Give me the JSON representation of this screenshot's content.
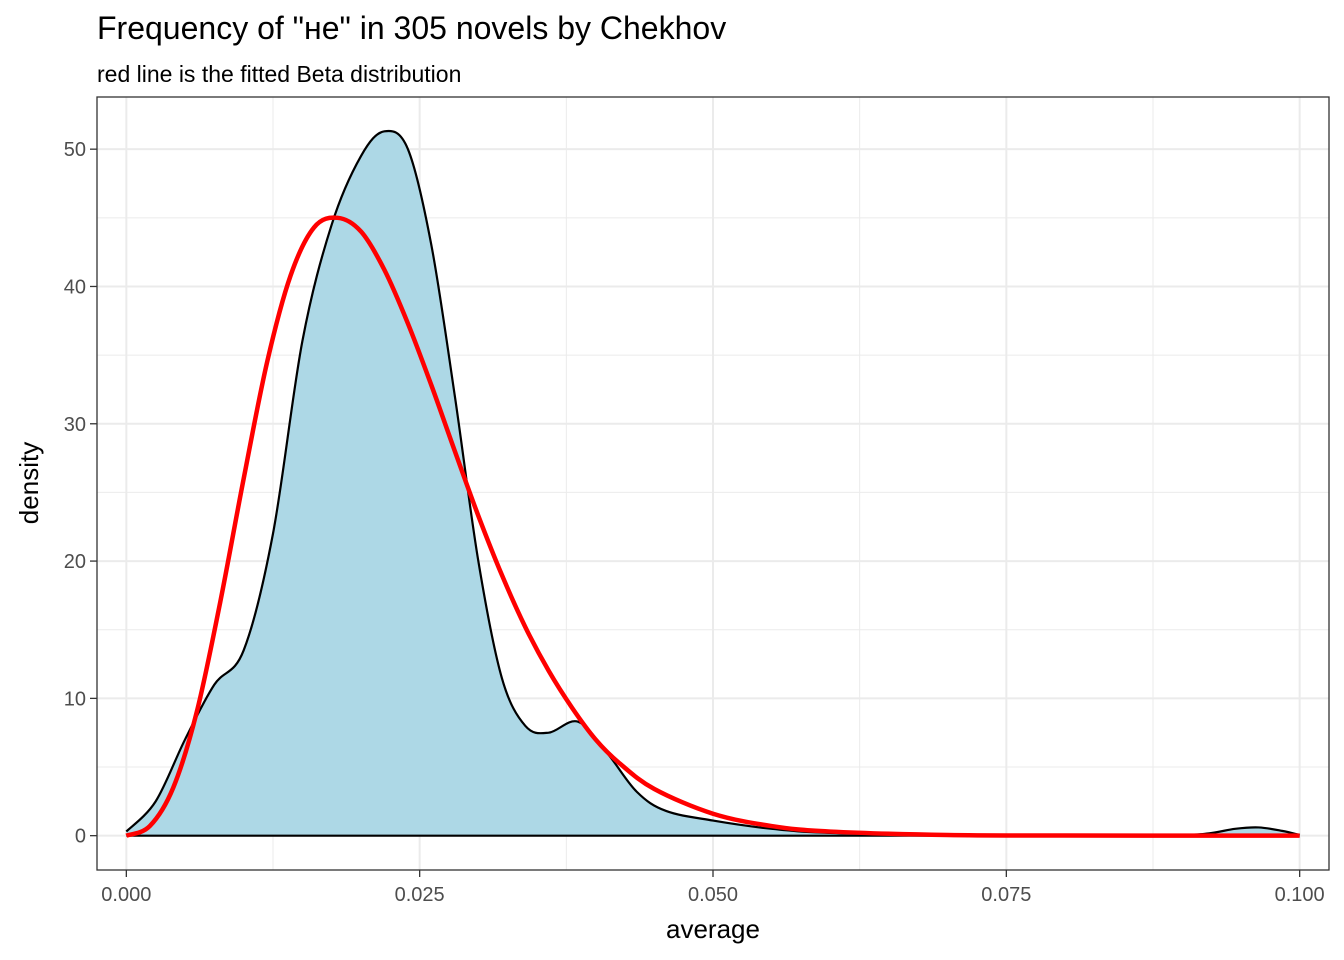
{
  "chart_data": {
    "type": "area",
    "title": "Frequency of \"не\" in 305 novels by Chekhov",
    "subtitle": "red line is the fitted Beta distribution",
    "xlabel": "average",
    "ylabel": "density",
    "xlim": [
      -0.0025,
      0.1025
    ],
    "ylim": [
      -2.5,
      53.8
    ],
    "x_ticks": [
      0.0,
      0.025,
      0.05,
      0.075,
      0.1
    ],
    "x_tick_labels": [
      "0.000",
      "0.025",
      "0.050",
      "0.075",
      "0.100"
    ],
    "y_ticks": [
      0,
      10,
      20,
      30,
      40,
      50
    ],
    "y_tick_labels": [
      "0",
      "10",
      "20",
      "30",
      "40",
      "50"
    ],
    "grid": true,
    "legend": "none",
    "colors": {
      "fill": "#add8e6",
      "outline": "#000000",
      "fit_line": "#ff0000",
      "grid": "#ebebeb"
    },
    "series": [
      {
        "kind": "density-area",
        "x": [
          0.0,
          0.0025,
          0.005,
          0.0075,
          0.01,
          0.0125,
          0.015,
          0.0175,
          0.02,
          0.022,
          0.024,
          0.026,
          0.028,
          0.03,
          0.032,
          0.034,
          0.036,
          0.0385,
          0.041,
          0.0435,
          0.046,
          0.05,
          0.055,
          0.06,
          0.07,
          0.08,
          0.09,
          0.0925,
          0.0945,
          0.0965,
          0.0985,
          0.1
        ],
        "y": [
          0.3,
          2.5,
          7.0,
          11.0,
          13.5,
          22.0,
          36.0,
          44.5,
          49.5,
          51.3,
          50.0,
          43.0,
          32.0,
          20.0,
          11.5,
          8.0,
          7.5,
          8.3,
          6.0,
          3.2,
          1.8,
          1.1,
          0.5,
          0.2,
          0.05,
          0.02,
          0.05,
          0.2,
          0.5,
          0.6,
          0.35,
          0.05
        ]
      },
      {
        "kind": "fitted-line",
        "x": [
          0.0,
          0.002,
          0.004,
          0.006,
          0.008,
          0.01,
          0.012,
          0.014,
          0.016,
          0.018,
          0.02,
          0.022,
          0.024,
          0.026,
          0.028,
          0.03,
          0.032,
          0.034,
          0.036,
          0.038,
          0.04,
          0.042,
          0.045,
          0.05,
          0.055,
          0.06,
          0.07,
          0.08,
          0.09,
          0.1
        ],
        "y": [
          0.0,
          0.7,
          3.5,
          9.0,
          17.0,
          26.0,
          34.5,
          40.8,
          44.3,
          45.0,
          44.0,
          41.2,
          37.3,
          32.8,
          28.0,
          23.3,
          19.0,
          15.2,
          12.0,
          9.3,
          7.0,
          5.3,
          3.4,
          1.6,
          0.7,
          0.3,
          0.05,
          0.01,
          0.0,
          0.0
        ]
      }
    ]
  }
}
